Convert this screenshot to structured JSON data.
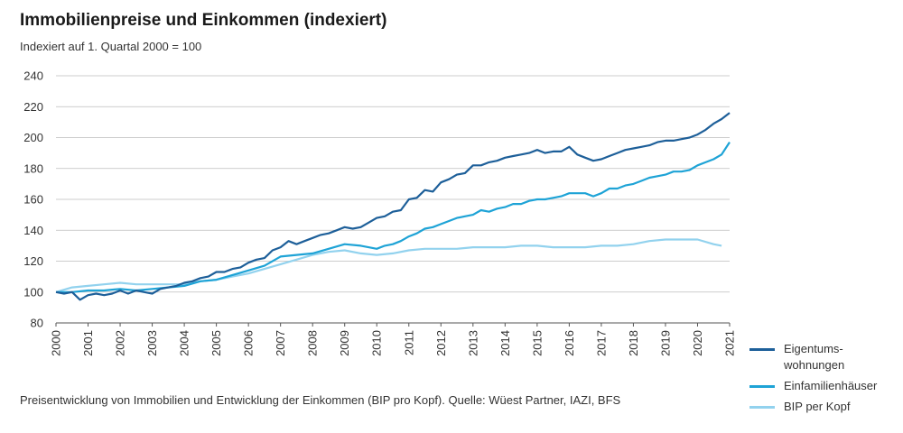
{
  "header": {
    "title": "Immobilienpreise und Einkommen (indexiert)",
    "subtitle": "Indexiert auf 1. Quartal 2000 = 100"
  },
  "footer": {
    "caption": "Preisentwicklung von Immobilien und Entwicklung der Einkommen (BIP pro Kopf). Quelle: Wüest Partner, IAZI, BFS"
  },
  "legend": [
    {
      "label": "Eigentums-\nwohnungen",
      "color": "#1d5f99"
    },
    {
      "label": "Einfamilienhäuser",
      "color": "#1ea3d6"
    },
    {
      "label": "BIP per Kopf",
      "color": "#92d2ee"
    }
  ],
  "chart_data": {
    "type": "line",
    "title": "Immobilienpreise und Einkommen (indexiert)",
    "subtitle": "Indexiert auf 1. Quartal 2000 = 100",
    "xlim": [
      2000,
      2021
    ],
    "ylim": [
      80,
      240
    ],
    "x_ticks": [
      "2000",
      "2001",
      "2002",
      "2003",
      "2004",
      "2005",
      "2006",
      "2007",
      "2008",
      "2009",
      "2010",
      "2011",
      "2012",
      "2013",
      "2014",
      "2015",
      "2016",
      "2017",
      "2018",
      "2019",
      "2020",
      "2021"
    ],
    "y_ticks": [
      80,
      100,
      120,
      140,
      160,
      180,
      200,
      220,
      240
    ],
    "grid": true,
    "legend_position": "bottom-right",
    "series": [
      {
        "name": "Eigentums-wohnungen",
        "color": "#1d5f99",
        "points": [
          [
            2000,
            100
          ],
          [
            2000.25,
            99
          ],
          [
            2000.5,
            100
          ],
          [
            2000.75,
            95
          ],
          [
            2001,
            98
          ],
          [
            2001.25,
            99
          ],
          [
            2001.5,
            98
          ],
          [
            2001.75,
            99
          ],
          [
            2002,
            101
          ],
          [
            2002.25,
            99
          ],
          [
            2002.5,
            101
          ],
          [
            2002.75,
            100
          ],
          [
            2003,
            99
          ],
          [
            2003.25,
            102
          ],
          [
            2003.5,
            103
          ],
          [
            2003.75,
            104
          ],
          [
            2004,
            106
          ],
          [
            2004.25,
            107
          ],
          [
            2004.5,
            109
          ],
          [
            2004.75,
            110
          ],
          [
            2005,
            113
          ],
          [
            2005.25,
            113
          ],
          [
            2005.5,
            115
          ],
          [
            2005.75,
            116
          ],
          [
            2006,
            119
          ],
          [
            2006.25,
            121
          ],
          [
            2006.5,
            122
          ],
          [
            2006.75,
            127
          ],
          [
            2007,
            129
          ],
          [
            2007.25,
            133
          ],
          [
            2007.5,
            131
          ],
          [
            2007.75,
            133
          ],
          [
            2008,
            135
          ],
          [
            2008.25,
            137
          ],
          [
            2008.5,
            138
          ],
          [
            2008.75,
            140
          ],
          [
            2009,
            142
          ],
          [
            2009.25,
            141
          ],
          [
            2009.5,
            142
          ],
          [
            2009.75,
            145
          ],
          [
            2010,
            148
          ],
          [
            2010.25,
            149
          ],
          [
            2010.5,
            152
          ],
          [
            2010.75,
            153
          ],
          [
            2011,
            160
          ],
          [
            2011.25,
            161
          ],
          [
            2011.5,
            166
          ],
          [
            2011.75,
            165
          ],
          [
            2012,
            171
          ],
          [
            2012.25,
            173
          ],
          [
            2012.5,
            176
          ],
          [
            2012.75,
            177
          ],
          [
            2013,
            182
          ],
          [
            2013.25,
            182
          ],
          [
            2013.5,
            184
          ],
          [
            2013.75,
            185
          ],
          [
            2014,
            187
          ],
          [
            2014.25,
            188
          ],
          [
            2014.5,
            189
          ],
          [
            2014.75,
            190
          ],
          [
            2015,
            192
          ],
          [
            2015.25,
            190
          ],
          [
            2015.5,
            191
          ],
          [
            2015.75,
            191
          ],
          [
            2016,
            194
          ],
          [
            2016.25,
            189
          ],
          [
            2016.5,
            187
          ],
          [
            2016.75,
            185
          ],
          [
            2017,
            186
          ],
          [
            2017.25,
            188
          ],
          [
            2017.5,
            190
          ],
          [
            2017.75,
            192
          ],
          [
            2018,
            193
          ],
          [
            2018.25,
            194
          ],
          [
            2018.5,
            195
          ],
          [
            2018.75,
            197
          ],
          [
            2019,
            198
          ],
          [
            2019.25,
            198
          ],
          [
            2019.5,
            199
          ],
          [
            2019.75,
            200
          ],
          [
            2020,
            202
          ],
          [
            2020.25,
            205
          ],
          [
            2020.5,
            209
          ],
          [
            2020.75,
            212
          ],
          [
            2021,
            216
          ]
        ]
      },
      {
        "name": "Einfamilienhäuser",
        "color": "#1ea3d6",
        "points": [
          [
            2000,
            100
          ],
          [
            2000.5,
            100
          ],
          [
            2001,
            101
          ],
          [
            2001.5,
            101
          ],
          [
            2002,
            102
          ],
          [
            2002.5,
            101
          ],
          [
            2003,
            102
          ],
          [
            2003.5,
            103
          ],
          [
            2004,
            104
          ],
          [
            2004.5,
            107
          ],
          [
            2005,
            108
          ],
          [
            2005.5,
            111
          ],
          [
            2006,
            114
          ],
          [
            2006.5,
            117
          ],
          [
            2007,
            123
          ],
          [
            2007.5,
            124
          ],
          [
            2008,
            125
          ],
          [
            2008.5,
            128
          ],
          [
            2009,
            131
          ],
          [
            2009.5,
            130
          ],
          [
            2010,
            128
          ],
          [
            2010.25,
            130
          ],
          [
            2010.5,
            131
          ],
          [
            2010.75,
            133
          ],
          [
            2011,
            136
          ],
          [
            2011.25,
            138
          ],
          [
            2011.5,
            141
          ],
          [
            2011.75,
            142
          ],
          [
            2012,
            144
          ],
          [
            2012.25,
            146
          ],
          [
            2012.5,
            148
          ],
          [
            2012.75,
            149
          ],
          [
            2013,
            150
          ],
          [
            2013.25,
            153
          ],
          [
            2013.5,
            152
          ],
          [
            2013.75,
            154
          ],
          [
            2014,
            155
          ],
          [
            2014.25,
            157
          ],
          [
            2014.5,
            157
          ],
          [
            2014.75,
            159
          ],
          [
            2015,
            160
          ],
          [
            2015.25,
            160
          ],
          [
            2015.5,
            161
          ],
          [
            2015.75,
            162
          ],
          [
            2016,
            164
          ],
          [
            2016.25,
            164
          ],
          [
            2016.5,
            164
          ],
          [
            2016.75,
            162
          ],
          [
            2017,
            164
          ],
          [
            2017.25,
            167
          ],
          [
            2017.5,
            167
          ],
          [
            2017.75,
            169
          ],
          [
            2018,
            170
          ],
          [
            2018.25,
            172
          ],
          [
            2018.5,
            174
          ],
          [
            2018.75,
            175
          ],
          [
            2019,
            176
          ],
          [
            2019.25,
            178
          ],
          [
            2019.5,
            178
          ],
          [
            2019.75,
            179
          ],
          [
            2020,
            182
          ],
          [
            2020.25,
            184
          ],
          [
            2020.5,
            186
          ],
          [
            2020.75,
            189
          ],
          [
            2021,
            197
          ]
        ]
      },
      {
        "name": "BIP per Kopf",
        "color": "#92d2ee",
        "points": [
          [
            2000,
            100
          ],
          [
            2000.5,
            103
          ],
          [
            2001,
            104
          ],
          [
            2001.5,
            105
          ],
          [
            2002,
            106
          ],
          [
            2002.5,
            105
          ],
          [
            2003,
            105
          ],
          [
            2003.5,
            105
          ],
          [
            2004,
            105
          ],
          [
            2004.5,
            107
          ],
          [
            2005,
            108
          ],
          [
            2005.5,
            110
          ],
          [
            2006,
            112
          ],
          [
            2006.5,
            115
          ],
          [
            2007,
            118
          ],
          [
            2007.5,
            121
          ],
          [
            2008,
            124
          ],
          [
            2008.5,
            126
          ],
          [
            2009,
            127
          ],
          [
            2009.5,
            125
          ],
          [
            2010,
            124
          ],
          [
            2010.5,
            125
          ],
          [
            2011,
            127
          ],
          [
            2011.5,
            128
          ],
          [
            2012,
            128
          ],
          [
            2012.5,
            128
          ],
          [
            2013,
            129
          ],
          [
            2013.5,
            129
          ],
          [
            2014,
            129
          ],
          [
            2014.5,
            130
          ],
          [
            2015,
            130
          ],
          [
            2015.5,
            129
          ],
          [
            2016,
            129
          ],
          [
            2016.5,
            129
          ],
          [
            2017,
            130
          ],
          [
            2017.5,
            130
          ],
          [
            2018,
            131
          ],
          [
            2018.5,
            133
          ],
          [
            2019,
            134
          ],
          [
            2019.5,
            134
          ],
          [
            2020,
            134
          ],
          [
            2020.5,
            131
          ],
          [
            2020.75,
            130
          ]
        ]
      }
    ]
  }
}
